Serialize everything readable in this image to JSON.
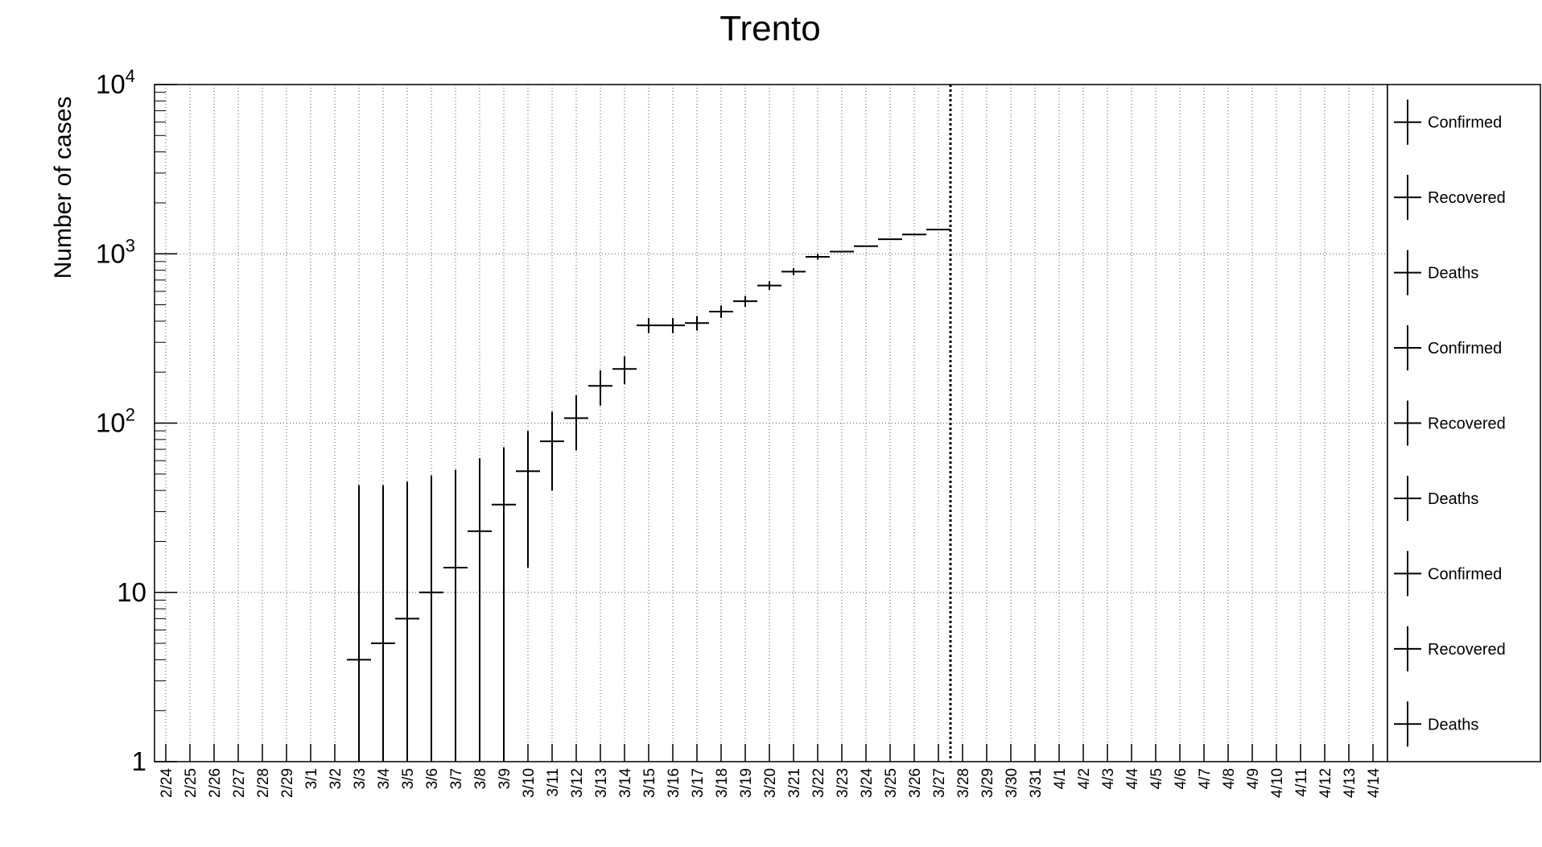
{
  "chart_data": {
    "type": "scatter",
    "title": "Trento",
    "xlabel": "",
    "ylabel": "Number of cases",
    "y_scale": "log",
    "ylim": [
      1,
      10000
    ],
    "y_ticks": [
      {
        "value": 1,
        "base": "1",
        "exp": ""
      },
      {
        "value": 10,
        "base": "10",
        "exp": ""
      },
      {
        "value": 100,
        "base": "10",
        "exp": "2"
      },
      {
        "value": 1000,
        "base": "10",
        "exp": "3"
      },
      {
        "value": 10000,
        "base": "10",
        "exp": "4"
      }
    ],
    "grid": true,
    "categories": [
      "2/24",
      "2/25",
      "2/26",
      "2/27",
      "2/28",
      "2/29",
      "3/1",
      "3/2",
      "3/3",
      "3/4",
      "3/5",
      "3/6",
      "3/7",
      "3/8",
      "3/9",
      "3/10",
      "3/11",
      "3/12",
      "3/13",
      "3/14",
      "3/15",
      "3/16",
      "3/17",
      "3/18",
      "3/19",
      "3/20",
      "3/21",
      "3/22",
      "3/23",
      "3/24",
      "3/25",
      "3/26",
      "3/27",
      "3/28",
      "3/29",
      "3/30",
      "3/31",
      "4/1",
      "4/2",
      "4/3",
      "4/4",
      "4/5",
      "4/6",
      "4/7",
      "4/8",
      "4/9",
      "4/10",
      "4/11",
      "4/12",
      "4/13",
      "4/14"
    ],
    "marker_line_after": "3/27",
    "series": [
      {
        "name": "Confirmed",
        "points": [
          {
            "x": "3/3",
            "y": 4,
            "ylow": 1,
            "yhigh": 43
          },
          {
            "x": "3/4",
            "y": 5,
            "ylow": 1,
            "yhigh": 43
          },
          {
            "x": "3/5",
            "y": 7,
            "ylow": 1,
            "yhigh": 45
          },
          {
            "x": "3/6",
            "y": 10,
            "ylow": 1,
            "yhigh": 49
          },
          {
            "x": "3/7",
            "y": 14,
            "ylow": 1,
            "yhigh": 53
          },
          {
            "x": "3/8",
            "y": 23,
            "ylow": 1,
            "yhigh": 62
          },
          {
            "x": "3/9",
            "y": 33,
            "ylow": 1,
            "yhigh": 72
          },
          {
            "x": "3/10",
            "y": 52,
            "ylow": 14,
            "yhigh": 90
          },
          {
            "x": "3/11",
            "y": 78,
            "ylow": 40,
            "yhigh": 117
          },
          {
            "x": "3/12",
            "y": 107,
            "ylow": 69,
            "yhigh": 146
          },
          {
            "x": "3/13",
            "y": 166,
            "ylow": 127,
            "yhigh": 205
          },
          {
            "x": "3/14",
            "y": 209,
            "ylow": 170,
            "yhigh": 248
          },
          {
            "x": "3/15",
            "y": 378,
            "ylow": 340,
            "yhigh": 417
          },
          {
            "x": "3/16",
            "y": 378,
            "ylow": 340,
            "yhigh": 417
          },
          {
            "x": "3/17",
            "y": 390,
            "ylow": 352,
            "yhigh": 429
          },
          {
            "x": "3/18",
            "y": 456,
            "ylow": 418,
            "yhigh": 495
          },
          {
            "x": "3/19",
            "y": 525,
            "ylow": 487,
            "yhigh": 564
          },
          {
            "x": "3/20",
            "y": 650,
            "ylow": 612,
            "yhigh": 689
          },
          {
            "x": "3/21",
            "y": 785,
            "ylow": 747,
            "yhigh": 824
          },
          {
            "x": "3/22",
            "y": 960,
            "ylow": 922,
            "yhigh": 999
          },
          {
            "x": "3/23",
            "y": 1030,
            "ylow": 1030,
            "yhigh": 1030
          },
          {
            "x": "3/24",
            "y": 1110,
            "ylow": 1110,
            "yhigh": 1110
          },
          {
            "x": "3/25",
            "y": 1220,
            "ylow": 1220,
            "yhigh": 1220
          },
          {
            "x": "3/26",
            "y": 1300,
            "ylow": 1300,
            "yhigh": 1300
          },
          {
            "x": "3/27",
            "y": 1390,
            "ylow": 1390,
            "yhigh": 1390
          }
        ]
      }
    ],
    "legend": {
      "position": "right",
      "entries": [
        "Confirmed",
        "Recovered",
        "Deaths",
        "Confirmed",
        "Recovered",
        "Deaths",
        "Confirmed",
        "Recovered",
        "Deaths"
      ]
    }
  }
}
